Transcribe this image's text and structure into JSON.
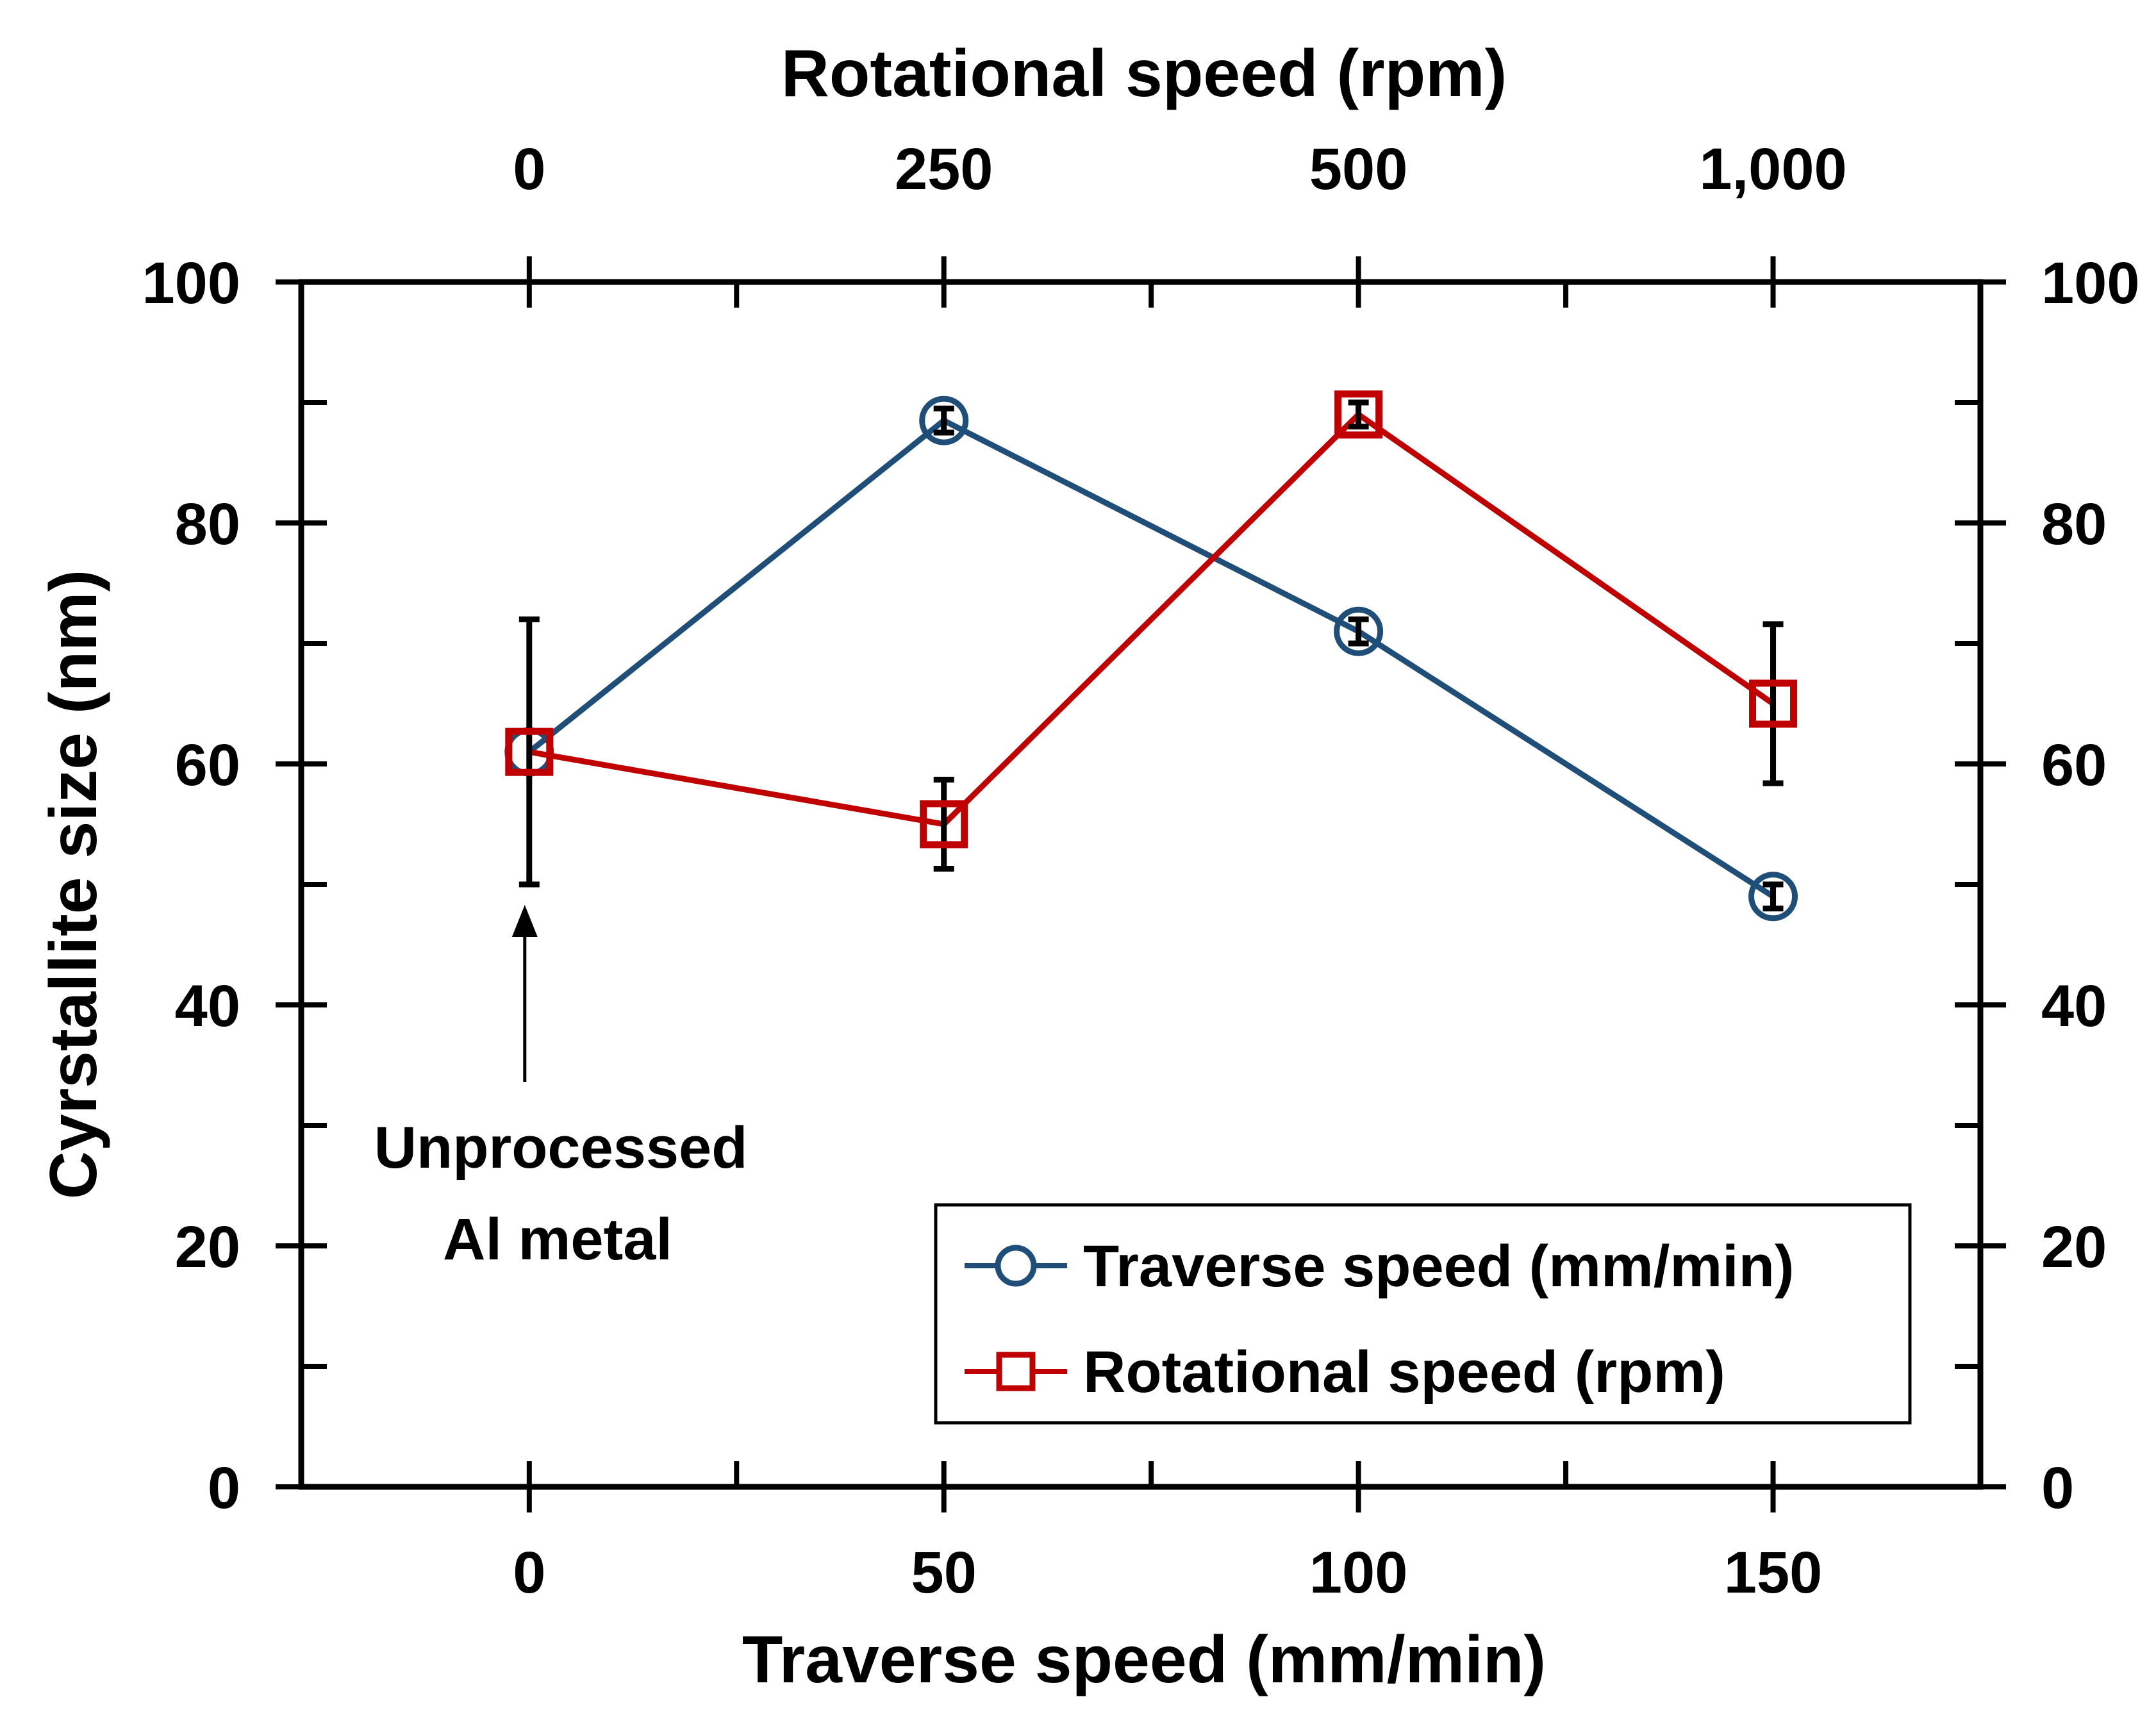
{
  "chart_data": {
    "type": "line",
    "title": "",
    "xlabel": "Traverse speed (mm/min)",
    "x2label": "Rotational speed (rpm)",
    "ylabel": "Cyrstallite size (nm)",
    "xlim": [
      -27.5,
      175
    ],
    "ylim": [
      0,
      100
    ],
    "x_ticks": [
      0,
      50,
      100,
      150
    ],
    "x_tick_labels": [
      "0",
      "50",
      "100",
      "150"
    ],
    "x_minor_ticks": [
      25,
      75,
      125,
      175
    ],
    "x2_tick_labels": [
      "0",
      "250",
      "500",
      "1,000"
    ],
    "y_ticks": [
      0,
      20,
      40,
      60,
      80,
      100
    ],
    "y_tick_labels": [
      "0",
      "20",
      "40",
      "60",
      "80",
      "100"
    ],
    "y_minor_ticks": [
      10,
      30,
      50,
      70,
      90
    ],
    "y2_tick_labels": [
      "0",
      "20",
      "40",
      "60",
      "80",
      "100"
    ],
    "series": [
      {
        "name": "Traverse speed (mm/min)",
        "color": "#1f4e79",
        "marker": "circle",
        "x": [
          0,
          50,
          100,
          150
        ],
        "values": [
          61,
          88.5,
          71,
          49
        ],
        "error": [
          0,
          1,
          1,
          1
        ]
      },
      {
        "name": "Rotational speed (rpm)",
        "color": "#c00000",
        "marker": "square",
        "x": [
          0,
          50,
          100,
          150
        ],
        "values": [
          61,
          55,
          89,
          65
        ],
        "error": [
          11,
          3.7,
          1,
          6.6
        ]
      }
    ],
    "legend": {
      "position": "bottom-right"
    },
    "annotation": {
      "lines": [
        "Unprocessed",
        "Al metal"
      ],
      "x": 0
    }
  }
}
